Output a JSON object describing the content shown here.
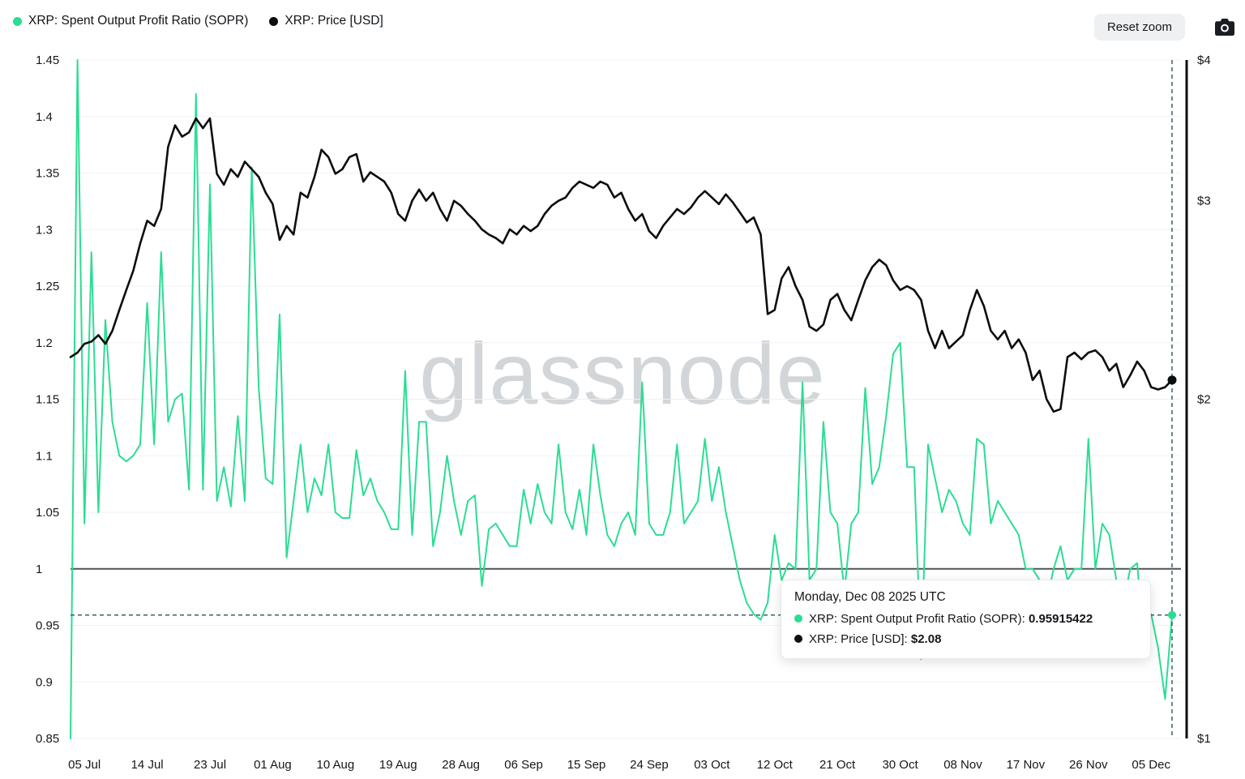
{
  "legend": {
    "items": [
      {
        "label": "XRP: Spent Output Profit Ratio (SOPR)",
        "color": "#2bdd92"
      },
      {
        "label": "XRP: Price [USD]",
        "color": "#0b0d10"
      }
    ]
  },
  "controls": {
    "reset_zoom": "Reset zoom"
  },
  "watermark": "glassnode",
  "tooltip": {
    "title": "Monday, Dec 08 2025 UTC",
    "rows": [
      {
        "label": "XRP: Spent Output Profit Ratio (SOPR):",
        "value": "0.95915422",
        "color": "#2bdd92"
      },
      {
        "label": "XRP: Price [USD]:",
        "value": "$2.08",
        "color": "#0b0d10"
      }
    ]
  },
  "colors": {
    "sopr_green": "#2bdd92",
    "price_black": "#0b0d10",
    "crosshair_teal": "#3b6069",
    "grid_line": "#f0f1f3",
    "baseline_gray": "#4d5358",
    "watermark_gray": "#b9bdc3",
    "button_bg": "#eef0f2",
    "text_dark": "#14171b"
  },
  "chart_data": {
    "type": "line",
    "title": "",
    "x_start_date": "2025-07-03",
    "x_end_date": "2025-12-08",
    "x_interval_days": 1,
    "grid": "horizontal-faint",
    "legend_position": "top-left",
    "baseline_value": 1,
    "left_axis": {
      "scale": "linear",
      "range": [
        0.85,
        1.45
      ],
      "ticks": [
        {
          "value": 1.45,
          "label": "1.45"
        },
        {
          "value": 1.4,
          "label": "1.4"
        },
        {
          "value": 1.35,
          "label": "1.35"
        },
        {
          "value": 1.3,
          "label": "1.3"
        },
        {
          "value": 1.25,
          "label": "1.25"
        },
        {
          "value": 1.2,
          "label": "1.2"
        },
        {
          "value": 1.15,
          "label": "1.15"
        },
        {
          "value": 1.1,
          "label": "1.1"
        },
        {
          "value": 1.05,
          "label": "1.05"
        },
        {
          "value": 1,
          "label": "1"
        },
        {
          "value": 0.95,
          "label": "0.95"
        },
        {
          "value": 0.9,
          "label": "0.9"
        },
        {
          "value": 0.85,
          "label": "0.85"
        }
      ]
    },
    "right_axis": {
      "scale": "log",
      "range": [
        1,
        4
      ],
      "ticks": [
        {
          "value": 4,
          "label": "$4"
        },
        {
          "value": 3,
          "label": "$3"
        },
        {
          "value": 2,
          "label": "$2"
        },
        {
          "value": 1,
          "label": "$1"
        }
      ]
    },
    "x_ticks": [
      {
        "offset": 2,
        "label": "05 Jul"
      },
      {
        "offset": 11,
        "label": "14 Jul"
      },
      {
        "offset": 20,
        "label": "23 Jul"
      },
      {
        "offset": 29,
        "label": "01 Aug"
      },
      {
        "offset": 38,
        "label": "10 Aug"
      },
      {
        "offset": 47,
        "label": "19 Aug"
      },
      {
        "offset": 56,
        "label": "28 Aug"
      },
      {
        "offset": 65,
        "label": "06 Sep"
      },
      {
        "offset": 74,
        "label": "15 Sep"
      },
      {
        "offset": 83,
        "label": "24 Sep"
      },
      {
        "offset": 92,
        "label": "03 Oct"
      },
      {
        "offset": 101,
        "label": "12 Oct"
      },
      {
        "offset": 110,
        "label": "21 Oct"
      },
      {
        "offset": 119,
        "label": "30 Oct"
      },
      {
        "offset": 128,
        "label": "08 Nov"
      },
      {
        "offset": 137,
        "label": "17 Nov"
      },
      {
        "offset": 146,
        "label": "26 Nov"
      },
      {
        "offset": 155,
        "label": "05 Dec"
      }
    ],
    "series": [
      {
        "name": "XRP: Spent Output Profit Ratio (SOPR)",
        "axis": "left",
        "color": "#2bdd92",
        "values": [
          0.85,
          1.45,
          1.04,
          1.28,
          1.05,
          1.22,
          1.13,
          1.1,
          1.095,
          1.1,
          1.11,
          1.235,
          1.11,
          1.28,
          1.13,
          1.15,
          1.155,
          1.07,
          1.42,
          1.07,
          1.34,
          1.06,
          1.09,
          1.055,
          1.135,
          1.06,
          1.355,
          1.16,
          1.08,
          1.075,
          1.225,
          1.01,
          1.06,
          1.11,
          1.05,
          1.08,
          1.065,
          1.11,
          1.05,
          1.045,
          1.045,
          1.105,
          1.065,
          1.08,
          1.06,
          1.05,
          1.035,
          1.035,
          1.175,
          1.03,
          1.13,
          1.13,
          1.02,
          1.05,
          1.1,
          1.06,
          1.03,
          1.06,
          1.065,
          0.985,
          1.035,
          1.04,
          1.03,
          1.02,
          1.02,
          1.07,
          1.04,
          1.075,
          1.05,
          1.04,
          1.11,
          1.05,
          1.035,
          1.07,
          1.03,
          1.11,
          1.065,
          1.03,
          1.02,
          1.04,
          1.05,
          1.03,
          1.165,
          1.04,
          1.03,
          1.03,
          1.05,
          1.11,
          1.04,
          1.05,
          1.06,
          1.115,
          1.06,
          1.09,
          1.05,
          1.02,
          0.99,
          0.97,
          0.96,
          0.955,
          0.97,
          1.03,
          0.99,
          1.005,
          1.0,
          1.165,
          0.99,
          1.0,
          1.13,
          1.05,
          1.04,
          0.98,
          1.04,
          1.05,
          1.16,
          1.075,
          1.09,
          1.135,
          1.19,
          1.2,
          1.09,
          1.09,
          0.92,
          1.11,
          1.08,
          1.05,
          1.07,
          1.06,
          1.04,
          1.03,
          1.115,
          1.11,
          1.04,
          1.06,
          1.05,
          1.04,
          1.03,
          1.0,
          1.0,
          0.99,
          0.97,
          1.0,
          1.02,
          0.99,
          1.0,
          1.0,
          1.115,
          1.0,
          1.04,
          1.03,
          0.99,
          0.97,
          1.0,
          1.005,
          0.93,
          0.96,
          0.93,
          0.885,
          0.95915422
        ]
      },
      {
        "name": "XRP: Price [USD]",
        "axis": "right",
        "color": "#0b0d10",
        "values": [
          2.18,
          2.2,
          2.24,
          2.25,
          2.28,
          2.24,
          2.3,
          2.4,
          2.5,
          2.6,
          2.75,
          2.88,
          2.85,
          2.95,
          3.35,
          3.5,
          3.42,
          3.45,
          3.55,
          3.48,
          3.55,
          3.17,
          3.1,
          3.2,
          3.15,
          3.25,
          3.2,
          3.15,
          3.05,
          2.98,
          2.77,
          2.85,
          2.8,
          3.05,
          3.02,
          3.15,
          3.33,
          3.28,
          3.17,
          3.2,
          3.28,
          3.3,
          3.12,
          3.18,
          3.15,
          3.12,
          3.05,
          2.92,
          2.88,
          3.0,
          3.07,
          3.0,
          3.05,
          2.95,
          2.88,
          3.0,
          2.97,
          2.92,
          2.88,
          2.83,
          2.8,
          2.78,
          2.75,
          2.83,
          2.8,
          2.85,
          2.82,
          2.85,
          2.92,
          2.97,
          3.0,
          3.02,
          3.08,
          3.12,
          3.1,
          3.08,
          3.12,
          3.1,
          3.02,
          3.05,
          2.95,
          2.88,
          2.92,
          2.82,
          2.78,
          2.85,
          2.9,
          2.95,
          2.92,
          2.96,
          3.02,
          3.06,
          3.02,
          2.98,
          3.04,
          2.99,
          2.93,
          2.87,
          2.9,
          2.8,
          2.38,
          2.4,
          2.56,
          2.62,
          2.52,
          2.45,
          2.32,
          2.3,
          2.33,
          2.45,
          2.48,
          2.4,
          2.35,
          2.45,
          2.55,
          2.62,
          2.66,
          2.63,
          2.55,
          2.5,
          2.52,
          2.5,
          2.45,
          2.3,
          2.22,
          2.3,
          2.22,
          2.25,
          2.28,
          2.4,
          2.5,
          2.42,
          2.3,
          2.26,
          2.3,
          2.22,
          2.26,
          2.2,
          2.08,
          2.12,
          2.0,
          1.95,
          1.96,
          2.18,
          2.2,
          2.17,
          2.2,
          2.21,
          2.18,
          2.12,
          2.15,
          2.05,
          2.1,
          2.16,
          2.12,
          2.05,
          2.04,
          2.05,
          2.08
        ]
      }
    ],
    "crosshair": {
      "date": "2025-12-08",
      "sopr": 0.95915422,
      "price_usd": 2.08
    }
  }
}
